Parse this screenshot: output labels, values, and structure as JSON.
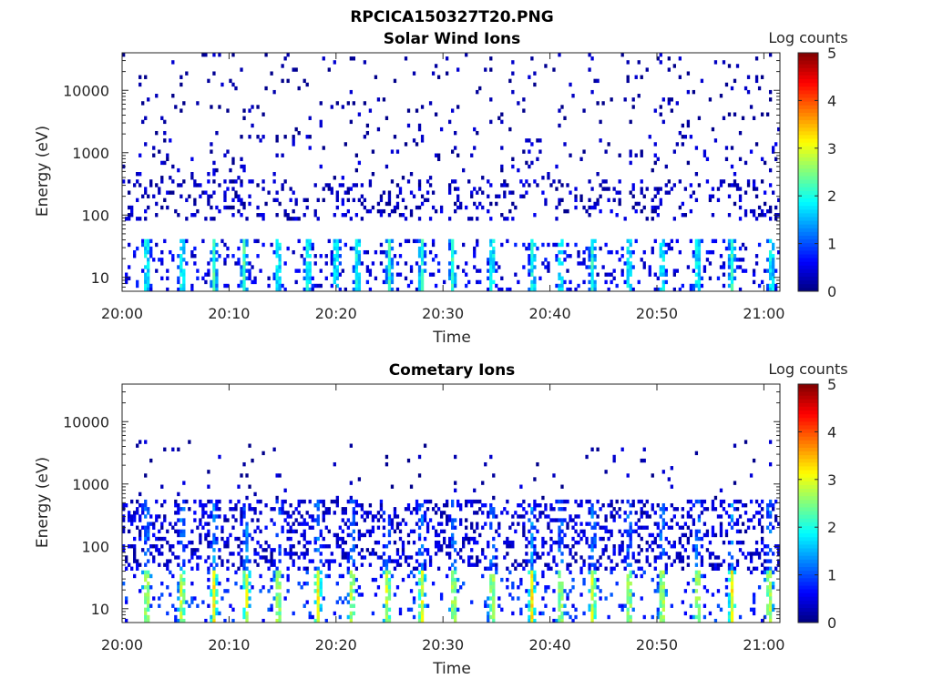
{
  "figure": {
    "file_title": "RPCICA150327T20.PNG"
  },
  "chart_data": [
    {
      "type": "heatmap",
      "title": "Solar Wind Ions",
      "xlabel": "Time",
      "ylabel": "Energy (eV)",
      "x_ticks": [
        "20:00",
        "20:10",
        "20:20",
        "20:30",
        "20:40",
        "20:50",
        "21:00"
      ],
      "x_tick_minutes": [
        0,
        10,
        20,
        30,
        40,
        50,
        60
      ],
      "xlim_minutes": [
        0,
        61.5
      ],
      "y_scale": "log",
      "y_ticks": [
        "10",
        "100",
        "1000",
        "10000"
      ],
      "y_tick_values": [
        10,
        100,
        1000,
        10000
      ],
      "ylim": [
        6,
        40000
      ],
      "colorbar": {
        "label": "Log counts",
        "ticks": [
          "0",
          "1",
          "2",
          "3",
          "4",
          "5"
        ],
        "range": [
          0,
          5
        ],
        "colormap": "jet"
      },
      "bursts_minutes": [
        2.3,
        5.6,
        8.6,
        11.4,
        14.6,
        17.4,
        20.0,
        22.0,
        25.0,
        28.0,
        30.9,
        34.6,
        38.4,
        41.0,
        44.0,
        47.4,
        50.5,
        53.8,
        57.0,
        60.7
      ],
      "bands": [
        {
          "emin": 6,
          "emax": 40,
          "density": 0.32,
          "cmean": 0.5
        },
        {
          "emin": 80,
          "emax": 350,
          "density": 0.16,
          "cmean": 0.3
        },
        {
          "emin": 350,
          "emax": 2000,
          "density": 0.05,
          "cmean": 0.25
        },
        {
          "emin": 2000,
          "emax": 40000,
          "density": 0.035,
          "cmean": 0.15
        }
      ]
    },
    {
      "type": "heatmap",
      "title": "Cometary Ions",
      "xlabel": "Time",
      "ylabel": "Energy (eV)",
      "x_ticks": [
        "20:00",
        "20:10",
        "20:20",
        "20:30",
        "20:40",
        "20:50",
        "21:00"
      ],
      "x_tick_minutes": [
        0,
        10,
        20,
        30,
        40,
        50,
        60
      ],
      "xlim_minutes": [
        0,
        61.5
      ],
      "y_scale": "log",
      "y_ticks": [
        "10",
        "100",
        "1000",
        "10000"
      ],
      "y_tick_values": [
        10,
        100,
        1000,
        10000
      ],
      "ylim": [
        6,
        40000
      ],
      "colorbar": {
        "label": "Log counts",
        "ticks": [
          "0",
          "1",
          "2",
          "3",
          "4",
          "5"
        ],
        "range": [
          0,
          5
        ],
        "colormap": "jet"
      },
      "bursts_minutes": [
        2.3,
        5.6,
        8.6,
        11.6,
        14.6,
        18.3,
        21.5,
        24.8,
        28.0,
        31.0,
        34.6,
        38.3,
        41.0,
        44.0,
        47.4,
        50.5,
        53.8,
        57.0,
        60.5
      ],
      "bands": [
        {
          "emin": 6,
          "emax": 40,
          "density": 0.3,
          "cmean": 0.8
        },
        {
          "emin": 40,
          "emax": 600,
          "density": 0.28,
          "cmean": 0.4
        },
        {
          "emin": 600,
          "emax": 5000,
          "density": 0.02,
          "cmean": 0.2
        }
      ]
    }
  ]
}
